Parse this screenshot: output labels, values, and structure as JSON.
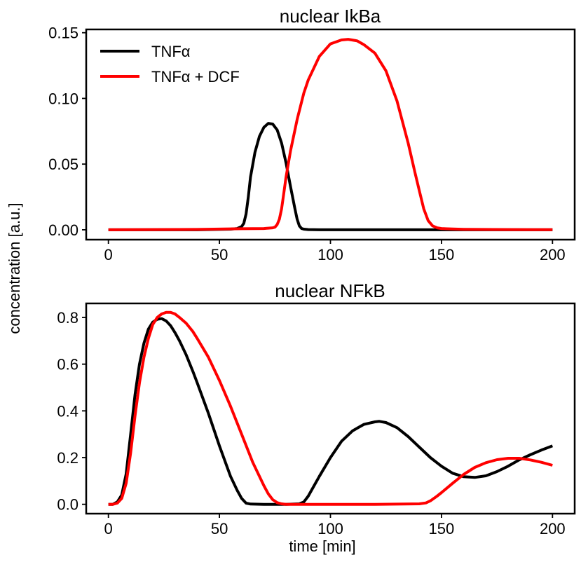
{
  "figure": {
    "ylabel": "concentration [a.u.]"
  },
  "chart_data": [
    {
      "type": "line",
      "title": "nuclear IkBa",
      "xlabel": "",
      "ylabel": "",
      "xlim": [
        -10,
        210
      ],
      "ylim": [
        -0.0075,
        0.1525
      ],
      "xticks": [
        0,
        50,
        100,
        150,
        200
      ],
      "xtick_labels": [
        "0",
        "50",
        "100",
        "150",
        "200"
      ],
      "yticks": [
        0,
        0.05,
        0.1,
        0.15
      ],
      "ytick_labels": [
        "0.00",
        "0.05",
        "0.10",
        "0.15"
      ],
      "grid": false,
      "legend": {
        "position": "top-left",
        "entries": [
          "TNFα",
          "TNFα + DCF"
        ]
      },
      "series": [
        {
          "name": "TNFα",
          "color": "#000000",
          "x": [
            0,
            20,
            40,
            55,
            58,
            60,
            61,
            62,
            63,
            64,
            66,
            68,
            70,
            72,
            74,
            76,
            78,
            80,
            82,
            84,
            85,
            86,
            87,
            88,
            90,
            95,
            100,
            150,
            200
          ],
          "y": [
            0,
            0,
            0,
            0.0005,
            0.001,
            0.0025,
            0.005,
            0.012,
            0.025,
            0.04,
            0.059,
            0.071,
            0.078,
            0.081,
            0.0805,
            0.076,
            0.066,
            0.051,
            0.033,
            0.016,
            0.008,
            0.003,
            0.001,
            0.0005,
            0.0002,
            0,
            0,
            0,
            0
          ]
        },
        {
          "name": "TNFα + DCF",
          "color": "#ff0000",
          "x": [
            0,
            40,
            60,
            70,
            74,
            75,
            76,
            77,
            78,
            79,
            80,
            82,
            85,
            88,
            90,
            95,
            100,
            105,
            108,
            112,
            115,
            120,
            125,
            130,
            135,
            138,
            140,
            142,
            144,
            146,
            148,
            150,
            155,
            160,
            180,
            200
          ],
          "y": [
            0,
            0.0003,
            0.0008,
            0.001,
            0.0015,
            0.002,
            0.004,
            0.008,
            0.016,
            0.028,
            0.04,
            0.06,
            0.084,
            0.104,
            0.114,
            0.132,
            0.1415,
            0.1445,
            0.145,
            0.1438,
            0.141,
            0.1345,
            0.121,
            0.098,
            0.066,
            0.044,
            0.03,
            0.016,
            0.007,
            0.003,
            0.0015,
            0.001,
            0.0006,
            0.0004,
            0.0002,
            0.0001
          ]
        }
      ]
    },
    {
      "type": "line",
      "title": "nuclear NFkB",
      "xlabel": "time [min]",
      "ylabel": "",
      "xlim": [
        -10,
        210
      ],
      "ylim": [
        -0.04,
        0.86
      ],
      "xticks": [
        0,
        50,
        100,
        150,
        200
      ],
      "xtick_labels": [
        "0",
        "50",
        "100",
        "150",
        "200"
      ],
      "yticks": [
        0,
        0.2,
        0.4,
        0.6,
        0.8
      ],
      "ytick_labels": [
        "0.0",
        "0.2",
        "0.4",
        "0.6",
        "0.8"
      ],
      "grid": false,
      "series": [
        {
          "name": "TNFα",
          "color": "#000000",
          "x": [
            0,
            2,
            4,
            6,
            8,
            10,
            12,
            14,
            16,
            18,
            20,
            22,
            24,
            26,
            28,
            30,
            32,
            35,
            38,
            40,
            45,
            50,
            55,
            58,
            60,
            62,
            64,
            70,
            80,
            86,
            88,
            90,
            95,
            100,
            105,
            110,
            115,
            120,
            122,
            125,
            130,
            135,
            140,
            145,
            150,
            155,
            160,
            165,
            170,
            175,
            180,
            185,
            190,
            195,
            200
          ],
          "y": [
            0,
            0,
            0.01,
            0.04,
            0.13,
            0.3,
            0.47,
            0.6,
            0.69,
            0.75,
            0.78,
            0.792,
            0.795,
            0.785,
            0.765,
            0.735,
            0.7,
            0.64,
            0.57,
            0.52,
            0.39,
            0.25,
            0.12,
            0.06,
            0.025,
            0.005,
            0.001,
            0,
            0,
            0.002,
            0.01,
            0.035,
            0.12,
            0.2,
            0.27,
            0.315,
            0.342,
            0.353,
            0.355,
            0.35,
            0.328,
            0.29,
            0.245,
            0.2,
            0.163,
            0.133,
            0.118,
            0.115,
            0.122,
            0.14,
            0.163,
            0.19,
            0.212,
            0.232,
            0.25
          ]
        },
        {
          "name": "TNFα + DCF",
          "color": "#ff0000",
          "x": [
            0,
            2,
            4,
            6,
            8,
            10,
            12,
            14,
            16,
            18,
            20,
            22,
            24,
            26,
            28,
            30,
            32,
            35,
            38,
            40,
            45,
            50,
            55,
            60,
            65,
            70,
            72,
            74,
            76,
            78,
            80,
            90,
            100,
            120,
            140,
            143,
            145,
            148,
            150,
            155,
            160,
            165,
            170,
            175,
            180,
            185,
            190,
            195,
            200
          ],
          "y": [
            0,
            0,
            0.005,
            0.025,
            0.09,
            0.22,
            0.38,
            0.52,
            0.63,
            0.71,
            0.77,
            0.8,
            0.815,
            0.822,
            0.822,
            0.815,
            0.8,
            0.775,
            0.74,
            0.71,
            0.63,
            0.53,
            0.42,
            0.3,
            0.18,
            0.08,
            0.045,
            0.02,
            0.007,
            0.002,
            0,
            0,
            0,
            0,
            0.002,
            0.006,
            0.015,
            0.035,
            0.05,
            0.09,
            0.128,
            0.158,
            0.178,
            0.191,
            0.197,
            0.197,
            0.19,
            0.18,
            0.167
          ]
        }
      ]
    }
  ]
}
